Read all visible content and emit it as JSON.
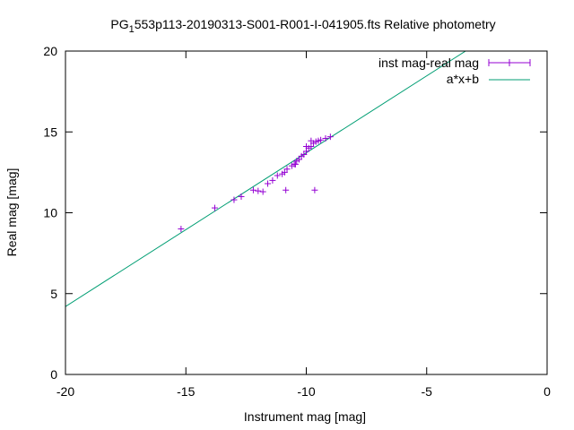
{
  "chart_data": {
    "type": "scatter",
    "title_main": "PG",
    "title_sub": "1",
    "title_rest": "553p113-20190313-S001-R001-I-041905.fts Relative photometry",
    "xlabel": "Instrument mag [mag]",
    "ylabel": "Real mag [mag]",
    "xlim": [
      -20,
      0
    ],
    "ylim": [
      0,
      20
    ],
    "xticks": [
      -20,
      -15,
      -10,
      -5,
      0
    ],
    "yticks": [
      0,
      5,
      10,
      15,
      20
    ],
    "xtick_labels": [
      "-20",
      "-15",
      "-10",
      "-5",
      "0"
    ],
    "ytick_labels": [
      "0",
      "5",
      "10",
      "15",
      "20"
    ],
    "grid": false,
    "legend_position": "top-right",
    "series": [
      {
        "name": "inst mag-real mag",
        "kind": "points-with-errorbars",
        "color": "#9400d3",
        "points": [
          [
            -15.2,
            9.0
          ],
          [
            -13.8,
            10.3
          ],
          [
            -13.0,
            10.8
          ],
          [
            -12.7,
            11.0
          ],
          [
            -12.2,
            11.4
          ],
          [
            -12.0,
            11.35
          ],
          [
            -11.8,
            11.3
          ],
          [
            -11.6,
            11.8
          ],
          [
            -11.4,
            12.0
          ],
          [
            -11.2,
            12.3
          ],
          [
            -11.0,
            12.4
          ],
          [
            -10.9,
            12.5
          ],
          [
            -10.8,
            12.7
          ],
          [
            -10.6,
            12.9
          ],
          [
            -10.5,
            13.0
          ],
          [
            -10.4,
            13.2
          ],
          [
            -10.3,
            13.3
          ],
          [
            -10.2,
            13.5
          ],
          [
            -10.1,
            13.6
          ],
          [
            -10.0,
            13.8
          ],
          [
            -9.9,
            14.0
          ],
          [
            -9.8,
            14.1
          ],
          [
            -9.7,
            14.3
          ],
          [
            -9.6,
            14.4
          ],
          [
            -9.5,
            14.45
          ],
          [
            -9.4,
            14.5
          ],
          [
            -9.2,
            14.6
          ],
          [
            -9.0,
            14.7
          ],
          [
            -10.85,
            11.4
          ],
          [
            -9.65,
            11.4
          ],
          [
            -10.45,
            13.0
          ],
          [
            -10.0,
            14.1
          ],
          [
            -9.8,
            14.45
          ]
        ]
      },
      {
        "name": "a*x+b",
        "kind": "line",
        "color": "#009e73",
        "a": 0.951,
        "b": 23.22
      }
    ]
  }
}
